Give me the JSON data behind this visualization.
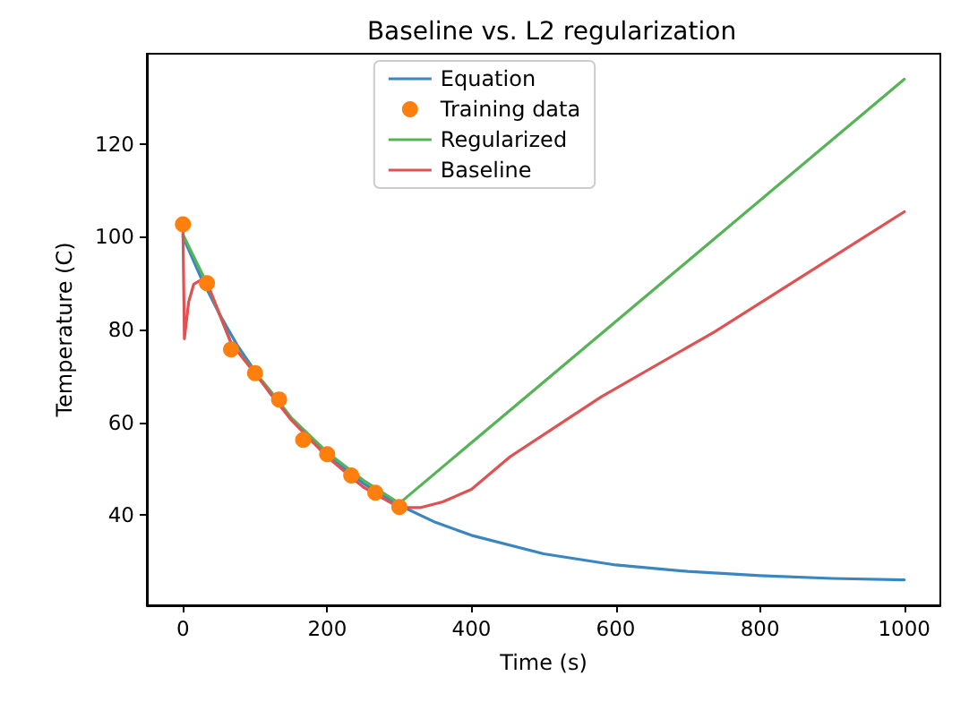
{
  "chart_data": {
    "type": "line",
    "title": "Baseline vs. L2 regularization",
    "xlabel": "Time (s)",
    "ylabel": "Temperature (C)",
    "xlim": [
      -50,
      1050
    ],
    "xticks": [
      0,
      200,
      400,
      600,
      800,
      1000
    ],
    "ylim": [
      20.5,
      139.5
    ],
    "yticks": [
      40,
      60,
      80,
      100,
      120
    ],
    "grid": false,
    "legend": "top",
    "marker": "none",
    "line_style": "solid",
    "series": [
      {
        "name": "Equation",
        "color": "#3a87c0",
        "x": [
          0,
          25,
          50,
          75,
          120,
          150,
          200,
          250,
          300,
          350,
          400,
          500,
          600,
          700,
          800,
          900,
          1000
        ],
        "values": [
          100,
          91.2,
          83.5,
          76.7,
          66.4,
          60.7,
          52.9,
          46.8,
          42.1,
          38.4,
          35.6,
          31.6,
          29.2,
          27.8,
          26.9,
          26.3,
          26.0
        ]
      },
      {
        "name": "Training data",
        "type": "scatter",
        "marker": "circle",
        "color": "#ff7f0e",
        "x": [
          0,
          33.3,
          66.7,
          100,
          133.3,
          166.7,
          200,
          233.3,
          266.7,
          300
        ],
        "values": [
          102.7,
          90.0,
          75.7,
          70.6,
          64.9,
          56.2,
          53.1,
          48.5,
          44.8,
          41.7
        ]
      },
      {
        "name": "Regularized",
        "color": "#56b356",
        "x": [
          0,
          33,
          67,
          120,
          150,
          200,
          250,
          300,
          1000
        ],
        "values": [
          100.5,
          90,
          77,
          67,
          61,
          53.5,
          47.5,
          42.5,
          134
        ]
      },
      {
        "name": "Baseline",
        "color": "#de5253",
        "x": [
          0,
          2,
          8,
          15,
          25,
          35,
          67,
          100,
          150,
          200,
          250,
          300,
          330,
          360,
          400,
          454,
          580,
          737,
          1000
        ],
        "values": [
          102,
          78,
          86,
          89.8,
          90.7,
          89.5,
          77,
          70.5,
          60.5,
          52.5,
          46,
          41.6,
          41.6,
          42.8,
          45.5,
          52.6,
          65.5,
          79.5,
          105.4
        ]
      }
    ]
  }
}
